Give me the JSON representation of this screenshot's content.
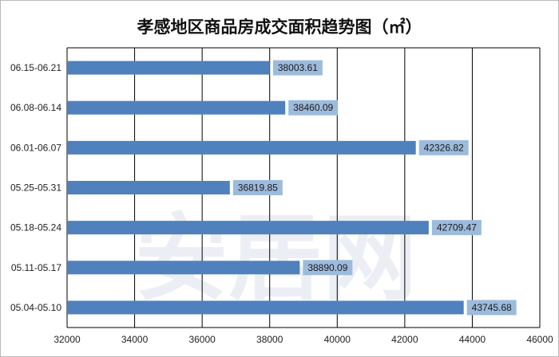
{
  "chart_data": {
    "type": "bar",
    "orientation": "horizontal",
    "title": "孝感地区商品房成交面积趋势图（㎡）",
    "categories": [
      "06.15-06.21",
      "06.08-06.14",
      "06.01-06.07",
      "05.25-05.31",
      "05.18-05.24",
      "05.11-05.17",
      "05.04-05.10"
    ],
    "values": [
      38003.61,
      38460.09,
      42326.82,
      36819.85,
      42709.47,
      38890.09,
      43745.68
    ],
    "data_labels": [
      "38003.61",
      "38460.09",
      "42326.82",
      "36819.85",
      "42709.47",
      "38890.09",
      "43745.68"
    ],
    "x_ticks": [
      "32000",
      "34000",
      "36000",
      "38000",
      "40000",
      "42000",
      "44000",
      "46000"
    ],
    "xlim": [
      32000,
      46000
    ],
    "grid": true,
    "legend": "none",
    "colors": {
      "bar": "#4f81bd",
      "label_box": "#9dbbdc",
      "grid": "#000000"
    }
  },
  "watermark": "安居网"
}
